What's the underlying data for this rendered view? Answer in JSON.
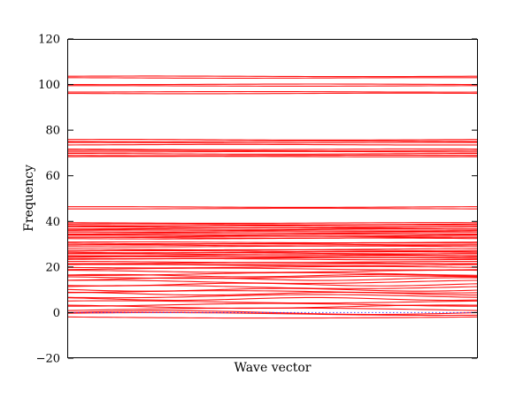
{
  "figure": {
    "background": "#ffffff",
    "axes_edge_color": "#000000",
    "text_color": "#000000"
  },
  "chart_data": {
    "type": "line",
    "title": "",
    "xlabel": "Wave vector",
    "ylabel": "Frequency",
    "ylim": [
      -20,
      120
    ],
    "x_range": [
      0,
      1
    ],
    "grid": false,
    "legend": null,
    "xticks": [],
    "yticks": [
      120,
      100,
      80,
      60,
      40,
      20,
      0,
      -20
    ],
    "ytick_labels": [
      "120",
      "100",
      "80",
      "60",
      "40",
      "20",
      "0",
      "−20"
    ],
    "line_color": "#ff0000",
    "zero_line": {
      "y": 0,
      "style": "dotted",
      "color": "#3333ff"
    },
    "band_format": [
      "frequency",
      "wiggle_amplitude",
      "wiggle_cycles",
      "wiggle_phase"
    ],
    "bands": [
      [
        103.6,
        0.12,
        1,
        0.3
      ],
      [
        102.9,
        0.12,
        1,
        2.1
      ],
      [
        100.1,
        0.12,
        1,
        4.0
      ],
      [
        99.4,
        0.12,
        1,
        1.2
      ],
      [
        96.8,
        0.12,
        1,
        5.1
      ],
      [
        96.1,
        0.12,
        1,
        2.8
      ],
      [
        75.8,
        0.15,
        1,
        0.8
      ],
      [
        75.1,
        0.15,
        1,
        3.6
      ],
      [
        74.5,
        0.12,
        1,
        1.9
      ],
      [
        73.6,
        0.12,
        1,
        5.3
      ],
      [
        71.6,
        0.15,
        1,
        2.4
      ],
      [
        71.0,
        0.12,
        1,
        0.5
      ],
      [
        70.5,
        0.12,
        1,
        4.4
      ],
      [
        69.6,
        0.15,
        1,
        1.6
      ],
      [
        68.9,
        0.12,
        1,
        3.0
      ],
      [
        68.4,
        0.12,
        1,
        5.8
      ],
      [
        46.3,
        0.15,
        1,
        1.1
      ],
      [
        45.6,
        0.15,
        1,
        4.2
      ],
      [
        39.3,
        0.15,
        1,
        2.2
      ],
      [
        38.7,
        0.2,
        1,
        0.7
      ],
      [
        38.25,
        0.2,
        1,
        3.1
      ],
      [
        37.8,
        0.2,
        1,
        5.5
      ],
      [
        37.35,
        0.2,
        1,
        1.4
      ],
      [
        36.9,
        0.2,
        1,
        4.8
      ],
      [
        36.45,
        0.2,
        1,
        2.6
      ],
      [
        36.0,
        0.2,
        1,
        0.2
      ],
      [
        35.55,
        0.2,
        1,
        3.9
      ],
      [
        35.1,
        0.2,
        1,
        1.8
      ],
      [
        34.65,
        0.2,
        1,
        5.0
      ],
      [
        34.2,
        0.2,
        1,
        2.9
      ],
      [
        33.75,
        0.2,
        1,
        0.9
      ],
      [
        33.3,
        0.2,
        1,
        4.5
      ],
      [
        32.85,
        0.2,
        1,
        1.5
      ],
      [
        32.5,
        0.2,
        1,
        3.3
      ],
      [
        30.8,
        0.2,
        1,
        0.6
      ],
      [
        30.35,
        0.2,
        1,
        2.8
      ],
      [
        29.9,
        0.2,
        1,
        5.2
      ],
      [
        29.45,
        0.2,
        1,
        1.0
      ],
      [
        29.0,
        0.2,
        1,
        3.7
      ],
      [
        27.7,
        0.25,
        1,
        2.0
      ],
      [
        27.3,
        0.25,
        1,
        4.9
      ],
      [
        26.9,
        0.25,
        1,
        0.4
      ],
      [
        26.45,
        0.25,
        1,
        3.2
      ],
      [
        26.0,
        0.25,
        1,
        5.7
      ],
      [
        25.6,
        0.25,
        1,
        1.3
      ],
      [
        25.15,
        0.25,
        1,
        4.1
      ],
      [
        24.7,
        0.25,
        1,
        2.5
      ],
      [
        24.3,
        0.25,
        1,
        0.1
      ],
      [
        23.85,
        0.25,
        1,
        3.5
      ],
      [
        23.4,
        0.25,
        1,
        5.9
      ],
      [
        22.2,
        0.25,
        1,
        1.7
      ],
      [
        21.7,
        0.25,
        1,
        4.6
      ],
      [
        21.3,
        0.25,
        1,
        2.3
      ],
      [
        20.8,
        0.3,
        1,
        0.8
      ],
      [
        19.9,
        0.3,
        1,
        3.4
      ],
      [
        19.1,
        0.4,
        1,
        5.6
      ],
      [
        18.1,
        0.5,
        1,
        1.9
      ],
      [
        16.9,
        0.6,
        1,
        4.3
      ],
      [
        16.2,
        0.5,
        1.5,
        0.6
      ],
      [
        15.5,
        0.5,
        1,
        2.7
      ],
      [
        14.7,
        0.6,
        1.5,
        5.1
      ],
      [
        13.5,
        0.7,
        1,
        1.1
      ],
      [
        12.3,
        0.6,
        1.5,
        3.8
      ],
      [
        11.2,
        0.7,
        1,
        0.3
      ],
      [
        10.0,
        0.6,
        1.5,
        2.9
      ],
      [
        9.1,
        0.5,
        1,
        5.4
      ],
      [
        8.3,
        0.6,
        1.5,
        1.6
      ],
      [
        7.2,
        0.7,
        1,
        4.0
      ],
      [
        6.0,
        0.6,
        1.5,
        2.2
      ],
      [
        4.7,
        0.5,
        1,
        0.9
      ],
      [
        3.4,
        0.6,
        1,
        4.7
      ],
      [
        2.6,
        0.7,
        1,
        2.0
      ],
      [
        0.9,
        1.1,
        0.5,
        0
      ],
      [
        0.0,
        0.8,
        1,
        0
      ],
      [
        -1.9,
        0.5,
        0.5,
        3.14
      ],
      [
        -0.6,
        0.6,
        0.75,
        0.5
      ]
    ]
  }
}
